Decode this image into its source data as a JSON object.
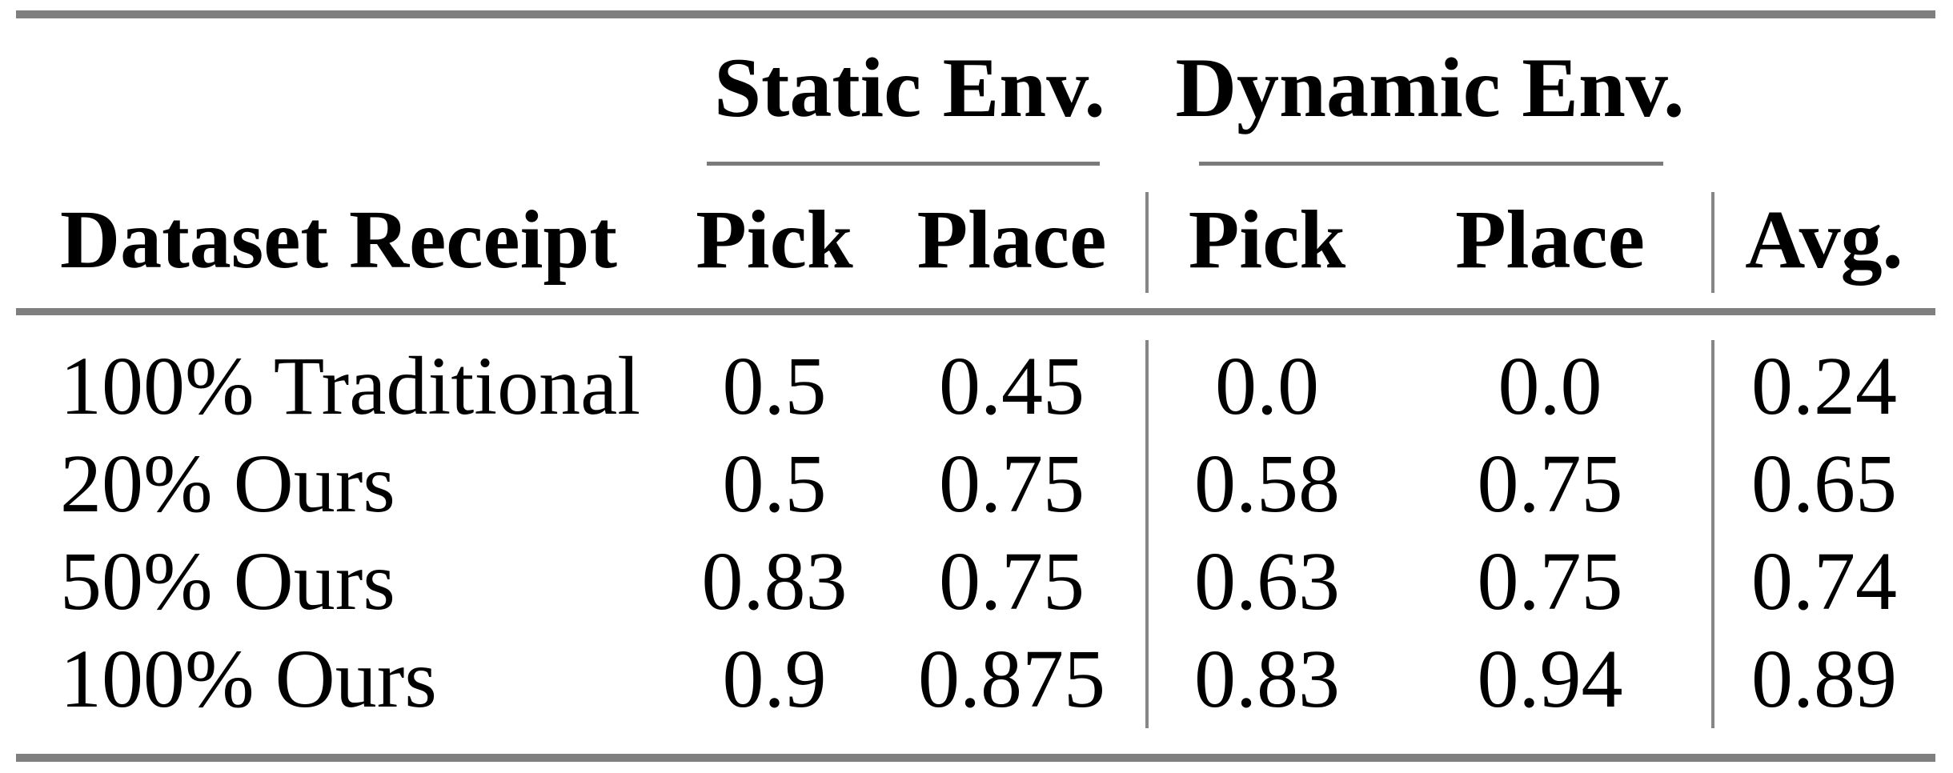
{
  "table": {
    "groups": [
      "Static Env.",
      "Dynamic Env."
    ],
    "headers": [
      "Dataset Receipt",
      "Pick",
      "Place",
      "Pick",
      "Place",
      "Avg."
    ],
    "rows": [
      [
        "100% Traditional",
        "0.5",
        "0.45",
        "0.0",
        "0.0",
        "0.24"
      ],
      [
        "20% Ours",
        "0.5",
        "0.75",
        "0.58",
        "0.75",
        "0.65"
      ],
      [
        "50% Ours",
        "0.83",
        "0.75",
        "0.63",
        "0.75",
        "0.74"
      ],
      [
        "100% Ours",
        "0.9",
        "0.875",
        "0.83",
        "0.94",
        "0.89"
      ]
    ],
    "colors": {
      "rule_gray": "#7f7f7f",
      "vertical_rule_gray": "#868686",
      "text": "#000000",
      "background": "#ffffff"
    }
  }
}
